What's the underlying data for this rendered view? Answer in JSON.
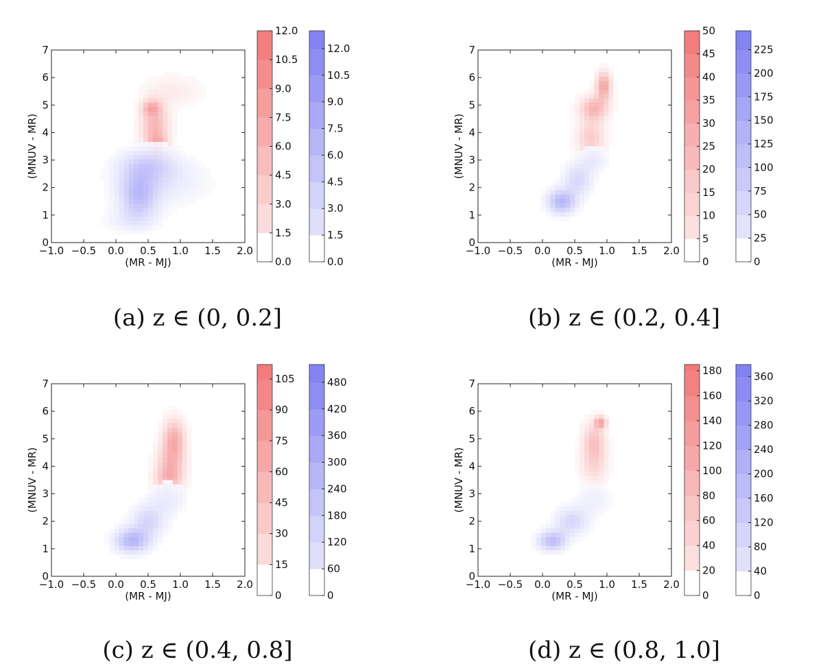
{
  "chart_data": [
    {
      "type": "heatmap",
      "caption": "(a) z ∈ (0, 0.2]",
      "xlabel": "(MR - MJ)",
      "ylabel": "(MNUV - MR)",
      "xlim": [
        -1.0,
        2.0
      ],
      "ylim": [
        0,
        7
      ],
      "xticks": [
        "−1.0",
        "−0.5",
        "0.0",
        "0.5",
        "1.0",
        "1.5",
        "2.0"
      ],
      "yticks": [
        "0",
        "1",
        "2",
        "3",
        "4",
        "5",
        "6",
        "7"
      ],
      "series": [
        {
          "color": "#f06868",
          "colorbar": {
            "min": 0,
            "max": 12,
            "ticks": [
              "0.0",
              "1.5",
              "3.0",
              "4.5",
              "6.0",
              "7.5",
              "9.0",
              "10.5",
              "12.0"
            ]
          },
          "blobs": [
            [
              0.6,
              4.2,
              0.15,
              0.6,
              0.55
            ],
            [
              0.55,
              4.9,
              0.1,
              0.2,
              0.45
            ],
            [
              0.65,
              3.4,
              0.1,
              0.3,
              0.6
            ],
            [
              0.9,
              5.5,
              0.3,
              0.4,
              0.15
            ]
          ]
        },
        {
          "color": "#7070f0",
          "colorbar": {
            "min": 0,
            "max": 13,
            "ticks": [
              "0.0",
              "1.5",
              "3.0",
              "4.5",
              "6.0",
              "7.5",
              "9.0",
              "10.5",
              "12.0"
            ]
          },
          "blobs": [
            [
              0.35,
              1.7,
              0.2,
              0.6,
              0.45
            ],
            [
              0.5,
              2.8,
              0.3,
              0.4,
              0.3
            ],
            [
              0.7,
              2.2,
              0.5,
              0.6,
              0.15
            ],
            [
              0.2,
              0.8,
              0.3,
              0.3,
              0.1
            ]
          ]
        }
      ]
    },
    {
      "type": "heatmap",
      "caption": "(b) z ∈ (0.2, 0.4]",
      "xlabel": "(MR - MJ)",
      "ylabel": "(MNUV - MR)",
      "xlim": [
        -1.0,
        2.0
      ],
      "ylim": [
        0,
        7
      ],
      "xticks": [
        "−1.0",
        "−0.5",
        "0.0",
        "0.5",
        "1.0",
        "1.5",
        "2.0"
      ],
      "yticks": [
        "0",
        "1",
        "2",
        "3",
        "4",
        "5",
        "6",
        "7"
      ],
      "series": [
        {
          "color": "#f06868",
          "colorbar": {
            "min": 0,
            "max": 50,
            "ticks": [
              "0",
              "5",
              "10",
              "15",
              "20",
              "25",
              "30",
              "35",
              "40",
              "45",
              "50"
            ]
          },
          "blobs": [
            [
              0.95,
              5.7,
              0.08,
              0.35,
              0.7
            ],
            [
              0.8,
              4.9,
              0.15,
              0.3,
              0.55
            ],
            [
              0.75,
              3.8,
              0.15,
              0.5,
              0.4
            ]
          ]
        },
        {
          "color": "#7070f0",
          "colorbar": {
            "min": 0,
            "max": 245,
            "ticks": [
              "0",
              "25",
              "50",
              "75",
              "100",
              "125",
              "150",
              "175",
              "200",
              "225"
            ]
          },
          "blobs": [
            [
              0.3,
              1.5,
              0.15,
              0.3,
              0.55
            ],
            [
              0.55,
              2.3,
              0.15,
              0.4,
              0.3
            ],
            [
              0.8,
              3.0,
              0.15,
              0.3,
              0.15
            ]
          ]
        }
      ]
    },
    {
      "type": "heatmap",
      "caption": "(c) z ∈ (0.4, 0.8]",
      "xlabel": "(MR - MJ)",
      "ylabel": "(MNUV - MR)",
      "xlim": [
        -1.0,
        2.0
      ],
      "ylim": [
        0,
        7
      ],
      "xticks": [
        "−1.0",
        "−0.5",
        "0.0",
        "0.5",
        "1.0",
        "1.5",
        "2.0"
      ],
      "yticks": [
        "0",
        "1",
        "2",
        "3",
        "4",
        "5",
        "6",
        "7"
      ],
      "series": [
        {
          "color": "#f06868",
          "colorbar": {
            "min": 0,
            "max": 112,
            "ticks": [
              "0",
              "15",
              "30",
              "45",
              "60",
              "75",
              "90",
              "105"
            ]
          },
          "blobs": [
            [
              0.9,
              5.0,
              0.12,
              0.5,
              0.6
            ],
            [
              0.85,
              4.0,
              0.15,
              0.5,
              0.5
            ],
            [
              0.8,
              3.5,
              0.15,
              0.3,
              0.3
            ]
          ]
        },
        {
          "color": "#7070f0",
          "colorbar": {
            "min": 0,
            "max": 520,
            "ticks": [
              "0",
              "60",
              "120",
              "180",
              "240",
              "300",
              "360",
              "420",
              "480"
            ]
          },
          "blobs": [
            [
              0.25,
              1.3,
              0.18,
              0.3,
              0.55
            ],
            [
              0.5,
              2.0,
              0.18,
              0.4,
              0.3
            ],
            [
              0.8,
              2.8,
              0.2,
              0.4,
              0.15
            ]
          ]
        }
      ]
    },
    {
      "type": "heatmap",
      "caption": "(d) z ∈ (0.8, 1.0]",
      "xlabel": "(MR - MJ)",
      "ylabel": "(MNUV - MR)",
      "xlim": [
        -1.0,
        2.0
      ],
      "ylim": [
        0,
        7
      ],
      "xticks": [
        "−1.0",
        "−0.5",
        "0.0",
        "0.5",
        "1.0",
        "1.5",
        "2.0"
      ],
      "yticks": [
        "0",
        "1",
        "2",
        "3",
        "4",
        "5",
        "6",
        "7"
      ],
      "series": [
        {
          "color": "#f06868",
          "colorbar": {
            "min": 0,
            "max": 185,
            "ticks": [
              "0",
              "20",
              "40",
              "60",
              "80",
              "100",
              "120",
              "140",
              "160",
              "180"
            ]
          },
          "blobs": [
            [
              0.9,
              5.6,
              0.06,
              0.15,
              0.65
            ],
            [
              0.8,
              4.9,
              0.12,
              0.5,
              0.45
            ],
            [
              0.8,
              4.0,
              0.15,
              0.5,
              0.25
            ]
          ]
        },
        {
          "color": "#7070f0",
          "colorbar": {
            "min": 0,
            "max": 380,
            "ticks": [
              "0",
              "40",
              "80",
              "120",
              "160",
              "200",
              "240",
              "280",
              "320",
              "360"
            ]
          },
          "blobs": [
            [
              0.15,
              1.3,
              0.15,
              0.25,
              0.5
            ],
            [
              0.45,
              2.0,
              0.18,
              0.35,
              0.3
            ],
            [
              0.8,
              2.8,
              0.2,
              0.4,
              0.12
            ]
          ]
        }
      ]
    }
  ]
}
